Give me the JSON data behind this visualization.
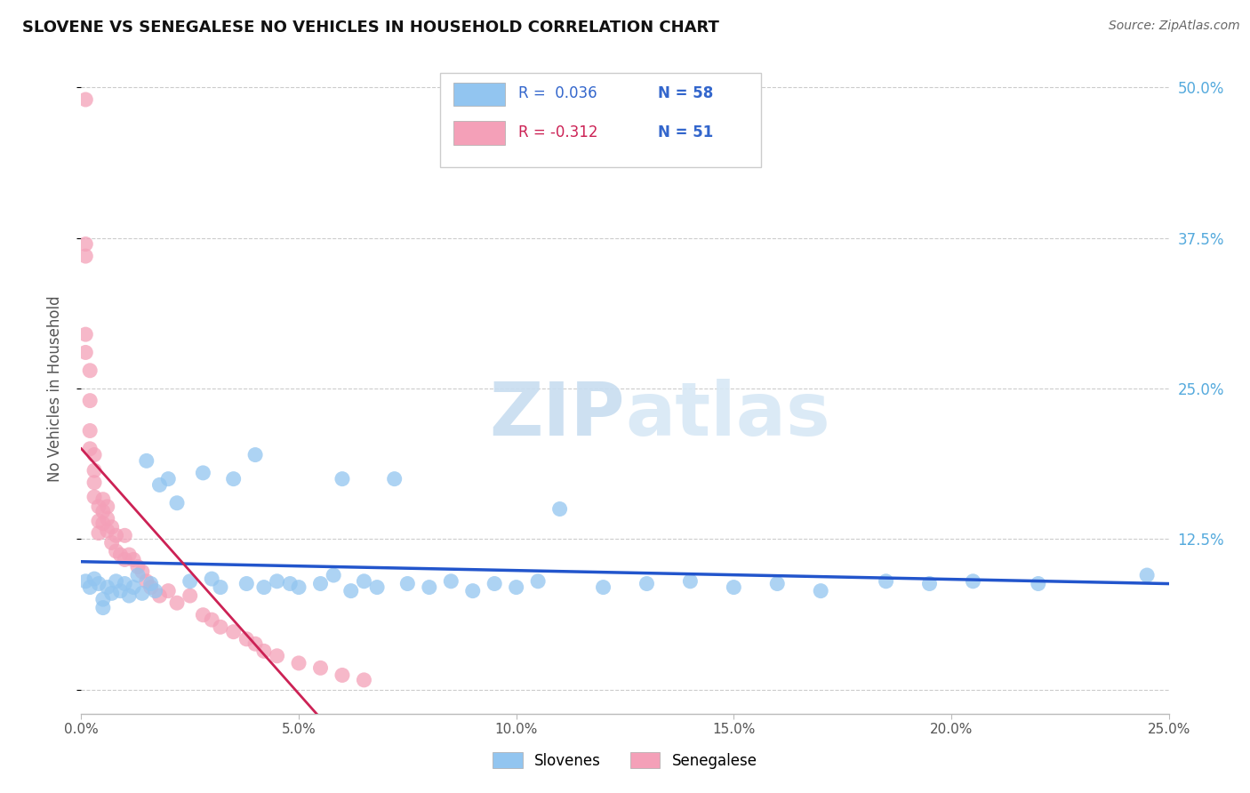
{
  "title": "SLOVENE VS SENEGALESE NO VEHICLES IN HOUSEHOLD CORRELATION CHART",
  "source": "Source: ZipAtlas.com",
  "ylabel": "No Vehicles in Household",
  "xlim": [
    0.0,
    0.25
  ],
  "ylim": [
    -0.02,
    0.52
  ],
  "legend_r_slovene": "R = 0.036",
  "legend_n_slovene": "N = 58",
  "legend_r_senegalese": "R = -0.312",
  "legend_n_senegalese": "N = 51",
  "color_slovene": "#92C5F0",
  "color_senegalese": "#F4A0B8",
  "color_line_slovene": "#2255CC",
  "color_line_senegalese": "#CC2255",
  "background_color": "#ffffff",
  "grid_color": "#cccccc",
  "slovene_x": [
    0.001,
    0.002,
    0.003,
    0.004,
    0.005,
    0.005,
    0.006,
    0.007,
    0.008,
    0.009,
    0.01,
    0.011,
    0.012,
    0.013,
    0.014,
    0.015,
    0.016,
    0.017,
    0.018,
    0.02,
    0.022,
    0.025,
    0.028,
    0.03,
    0.032,
    0.035,
    0.038,
    0.04,
    0.042,
    0.045,
    0.048,
    0.05,
    0.055,
    0.058,
    0.06,
    0.062,
    0.065,
    0.068,
    0.072,
    0.075,
    0.08,
    0.085,
    0.09,
    0.095,
    0.1,
    0.105,
    0.11,
    0.12,
    0.13,
    0.14,
    0.15,
    0.16,
    0.17,
    0.185,
    0.195,
    0.205,
    0.22,
    0.245
  ],
  "slovene_y": [
    0.09,
    0.085,
    0.092,
    0.088,
    0.075,
    0.068,
    0.085,
    0.08,
    0.09,
    0.082,
    0.088,
    0.078,
    0.085,
    0.095,
    0.08,
    0.19,
    0.088,
    0.082,
    0.17,
    0.175,
    0.155,
    0.09,
    0.18,
    0.092,
    0.085,
    0.175,
    0.088,
    0.195,
    0.085,
    0.09,
    0.088,
    0.085,
    0.088,
    0.095,
    0.175,
    0.082,
    0.09,
    0.085,
    0.175,
    0.088,
    0.085,
    0.09,
    0.082,
    0.088,
    0.085,
    0.09,
    0.15,
    0.085,
    0.088,
    0.09,
    0.085,
    0.088,
    0.082,
    0.09,
    0.088,
    0.09,
    0.088,
    0.095
  ],
  "senegalese_x": [
    0.001,
    0.001,
    0.001,
    0.001,
    0.001,
    0.002,
    0.002,
    0.002,
    0.002,
    0.003,
    0.003,
    0.003,
    0.003,
    0.004,
    0.004,
    0.004,
    0.005,
    0.005,
    0.005,
    0.006,
    0.006,
    0.006,
    0.007,
    0.007,
    0.008,
    0.008,
    0.009,
    0.01,
    0.01,
    0.011,
    0.012,
    0.013,
    0.014,
    0.015,
    0.016,
    0.018,
    0.02,
    0.022,
    0.025,
    0.028,
    0.03,
    0.032,
    0.035,
    0.038,
    0.04,
    0.042,
    0.045,
    0.05,
    0.055,
    0.06,
    0.065
  ],
  "senegalese_y": [
    0.49,
    0.37,
    0.36,
    0.295,
    0.28,
    0.265,
    0.24,
    0.215,
    0.2,
    0.195,
    0.182,
    0.172,
    0.16,
    0.152,
    0.14,
    0.13,
    0.158,
    0.148,
    0.138,
    0.152,
    0.142,
    0.132,
    0.135,
    0.122,
    0.128,
    0.115,
    0.112,
    0.128,
    0.108,
    0.112,
    0.108,
    0.102,
    0.098,
    0.09,
    0.085,
    0.078,
    0.082,
    0.072,
    0.078,
    0.062,
    0.058,
    0.052,
    0.048,
    0.042,
    0.038,
    0.032,
    0.028,
    0.022,
    0.018,
    0.012,
    0.008
  ]
}
